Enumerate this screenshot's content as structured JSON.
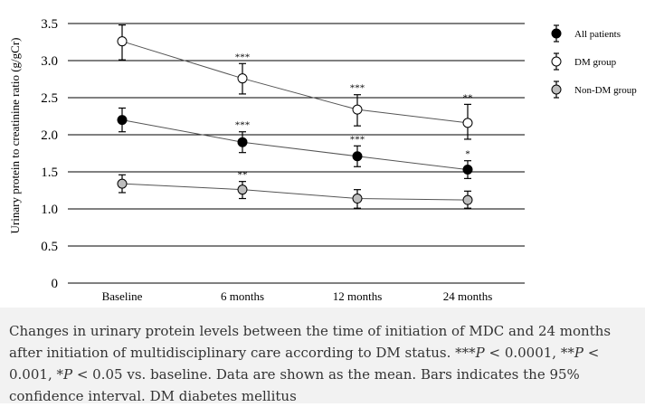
{
  "chart_data": {
    "type": "line",
    "categories": [
      "Baseline",
      "6 months",
      "12 months",
      "24 months"
    ],
    "ylabel": "Urinary protein to creatinine ratio (g/gCr)",
    "xlabel": "",
    "ylim": [
      0,
      3.5
    ],
    "yticks": [
      "0",
      "0.5",
      "1.0",
      "1.5",
      "2.0",
      "2.5",
      "3.0",
      "3.5"
    ],
    "ytick_values": [
      0,
      0.5,
      1.0,
      1.5,
      2.0,
      2.5,
      3.0,
      3.5
    ],
    "grid": "horizontal",
    "legend_position": "top-right",
    "series": [
      {
        "name": "All patients",
        "marker": "filled-black",
        "values": [
          2.2,
          1.9,
          1.71,
          1.53
        ],
        "ci_lower": [
          2.04,
          1.76,
          1.57,
          1.41
        ],
        "ci_upper": [
          2.36,
          2.04,
          1.85,
          1.65
        ],
        "annotations": [
          "",
          "***",
          "***",
          "*"
        ]
      },
      {
        "name": "DM group",
        "marker": "open-white",
        "values": [
          3.26,
          2.76,
          2.34,
          2.16
        ],
        "ci_lower": [
          3.01,
          2.55,
          2.12,
          1.94
        ],
        "ci_upper": [
          3.48,
          2.96,
          2.54,
          2.41
        ],
        "annotations": [
          "",
          "***",
          "***",
          "**"
        ]
      },
      {
        "name": "Non-DM group",
        "marker": "filled-gray",
        "values": [
          1.34,
          1.26,
          1.14,
          1.12
        ],
        "ci_lower": [
          1.22,
          1.14,
          1.01,
          1.01
        ],
        "ci_upper": [
          1.46,
          1.37,
          1.26,
          1.24
        ],
        "annotations": [
          "",
          "**",
          "",
          ""
        ]
      }
    ],
    "colors": {
      "filled-black": "#000000",
      "open-white": "#ffffff",
      "filled-gray": "#bdbdbd",
      "line": "#555555",
      "grid": "#000000"
    }
  },
  "caption": {
    "part1": "Changes in urinary protein levels between the time of initiation of MDC and 24 months after initiation of multidisciplinary care according to DM status. ",
    "sig3": "***",
    "p_letter": "P",
    "cond3": " < 0.0001, ",
    "sig2": "**",
    "cond2": " < 0.001, ",
    "sig1": "*",
    "cond1": " < 0.05",
    "part2": " vs. baseline. Data are shown as the mean. Bars indicates the 95% confidence interval. DM diabetes mellitus"
  }
}
